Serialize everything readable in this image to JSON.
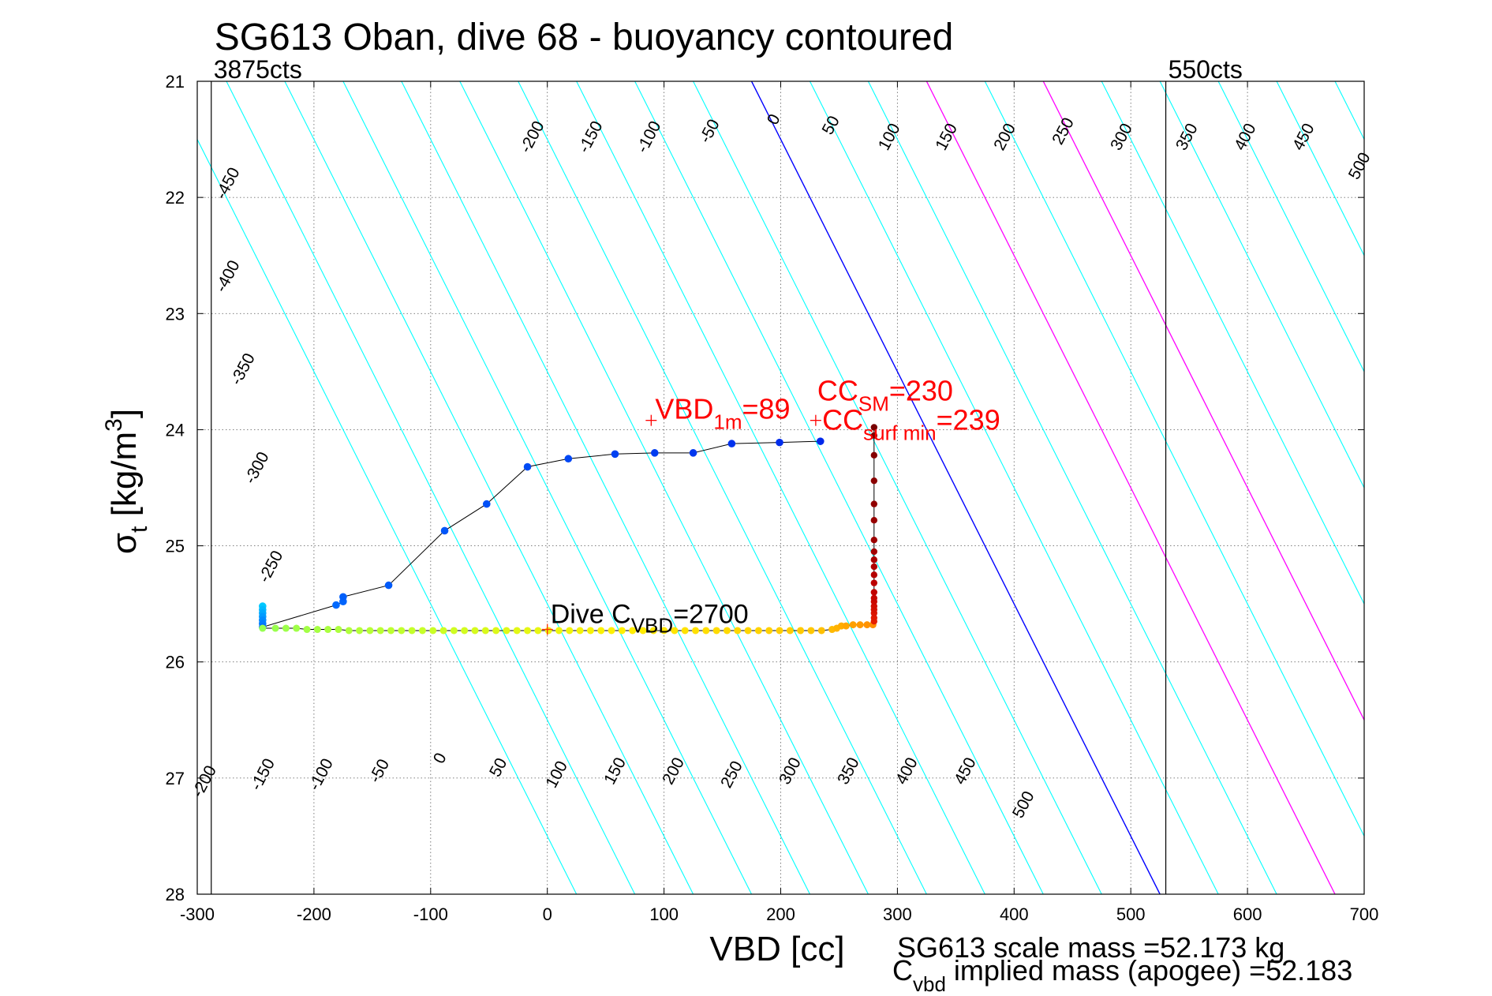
{
  "chart_data": {
    "type": "scatter",
    "title": "SG613 Oban, dive 68 - buoyancy contoured",
    "xlabel": "VBD [cc]",
    "ylabel": {
      "main": "σ",
      "sub": "t",
      "unit": " [kg/m",
      "sup": "3",
      "close": "]"
    },
    "xlim": [
      -300,
      700
    ],
    "ylim": [
      21,
      28
    ],
    "y_reversed": true,
    "grid": true,
    "x_ticks": [
      "-300",
      "-200",
      "-100",
      "0",
      "100",
      "200",
      "300",
      "400",
      "500",
      "600",
      "700"
    ],
    "y_ticks": [
      "21",
      "22",
      "23",
      "24",
      "25",
      "26",
      "27",
      "28"
    ],
    "vbd_limits": [
      {
        "x": -288,
        "label": "3875cts"
      },
      {
        "x": 530,
        "label": "550cts"
      }
    ],
    "contour_x_at_sigma21": [
      -325,
      -275,
      -225,
      -175,
      -125,
      -75,
      -25,
      25,
      75,
      125,
      175,
      225,
      275,
      325,
      375,
      425,
      475,
      525,
      575,
      625,
      675
    ],
    "contour_slope_cc_per_sigma": 50,
    "contour_colors": {
      "default": "#00ffff",
      "zero": "#0000ff",
      "cc": "#ff00ff"
    },
    "contour_labels_top": [
      {
        "text": "-450",
        "x": -270,
        "y": 21.9
      },
      {
        "text": "-400",
        "x": -270,
        "y": 22.7
      },
      {
        "text": "-350",
        "x": -257,
        "y": 23.5
      },
      {
        "text": "-300",
        "x": -245,
        "y": 24.35
      },
      {
        "text": "-250",
        "x": -233,
        "y": 25.2
      },
      {
        "text": "-200",
        "x": -9,
        "y": 21.5
      },
      {
        "text": "-150",
        "x": 41,
        "y": 21.5
      },
      {
        "text": "-100",
        "x": 91,
        "y": 21.5
      },
      {
        "text": "-50",
        "x": 143,
        "y": 21.45
      },
      {
        "text": "0",
        "x": 198,
        "y": 21.35
      },
      {
        "text": "50",
        "x": 247,
        "y": 21.4
      },
      {
        "text": "100",
        "x": 297,
        "y": 21.5
      },
      {
        "text": "150",
        "x": 346,
        "y": 21.5
      },
      {
        "text": "200",
        "x": 396,
        "y": 21.5
      },
      {
        "text": "250",
        "x": 446,
        "y": 21.45
      },
      {
        "text": "300",
        "x": 496,
        "y": 21.5
      },
      {
        "text": "350",
        "x": 552,
        "y": 21.5
      },
      {
        "text": "400",
        "x": 602,
        "y": 21.5
      },
      {
        "text": "450",
        "x": 652,
        "y": 21.5
      },
      {
        "text": "500",
        "x": 700,
        "y": 21.75
      }
    ],
    "contour_labels_bottom": [
      {
        "text": "-200",
        "x": -290,
        "y": 27.05
      },
      {
        "text": "-150",
        "x": -240,
        "y": 26.99
      },
      {
        "text": "-100",
        "x": -190,
        "y": 26.99
      },
      {
        "text": "-50",
        "x": -140,
        "y": 26.96
      },
      {
        "text": "0",
        "x": -88,
        "y": 26.85
      },
      {
        "text": "50",
        "x": -38,
        "y": 26.93
      },
      {
        "text": "100",
        "x": 12,
        "y": 26.99
      },
      {
        "text": "150",
        "x": 62,
        "y": 26.96
      },
      {
        "text": "200",
        "x": 112,
        "y": 26.96
      },
      {
        "text": "250",
        "x": 162,
        "y": 26.99
      },
      {
        "text": "300",
        "x": 212,
        "y": 26.96
      },
      {
        "text": "350",
        "x": 262,
        "y": 26.96
      },
      {
        "text": "400",
        "x": 312,
        "y": 26.96
      },
      {
        "text": "450",
        "x": 362,
        "y": 26.96
      },
      {
        "text": "500",
        "x": 412,
        "y": 27.25
      }
    ],
    "dive_series": {
      "name": "dive",
      "points": [
        [
          -244,
          25.52
        ],
        [
          -244,
          25.55
        ],
        [
          -244,
          25.58
        ],
        [
          -244,
          25.61
        ],
        [
          -244,
          25.64
        ],
        [
          -244,
          25.67
        ],
        [
          -244,
          25.7
        ],
        [
          -181,
          25.51
        ],
        [
          -175,
          25.48
        ],
        [
          -175,
          25.44
        ],
        [
          -136,
          25.34
        ],
        [
          -88,
          24.87
        ],
        [
          -52,
          24.64
        ],
        [
          -17,
          24.32
        ],
        [
          18,
          24.25
        ],
        [
          58,
          24.21
        ],
        [
          92,
          24.2
        ],
        [
          125,
          24.2
        ],
        [
          158,
          24.12
        ],
        [
          199,
          24.11
        ],
        [
          234,
          24.1
        ]
      ]
    },
    "climb_series": {
      "name": "climb",
      "points": [
        [
          -244,
          25.71
        ],
        [
          -233,
          25.71
        ],
        [
          -224,
          25.71
        ],
        [
          -215,
          25.71
        ],
        [
          -206,
          25.72
        ],
        [
          -197,
          25.72
        ],
        [
          -188,
          25.72
        ],
        [
          -179,
          25.72
        ],
        [
          -170,
          25.73
        ],
        [
          -161,
          25.73
        ],
        [
          -152,
          25.73
        ],
        [
          -143,
          25.73
        ],
        [
          -134,
          25.73
        ],
        [
          -125,
          25.73
        ],
        [
          -116,
          25.73
        ],
        [
          -107,
          25.73
        ],
        [
          -98,
          25.73
        ],
        [
          -89,
          25.73
        ],
        [
          -80,
          25.73
        ],
        [
          -71,
          25.73
        ],
        [
          -62,
          25.73
        ],
        [
          -53,
          25.73
        ],
        [
          -44,
          25.73
        ],
        [
          -35,
          25.73
        ],
        [
          -26,
          25.73
        ],
        [
          -17,
          25.73
        ],
        [
          -8,
          25.73
        ],
        [
          1,
          25.73
        ],
        [
          10,
          25.73
        ],
        [
          19,
          25.73
        ],
        [
          28,
          25.73
        ],
        [
          37,
          25.73
        ],
        [
          46,
          25.73
        ],
        [
          55,
          25.73
        ],
        [
          64,
          25.73
        ],
        [
          73,
          25.73
        ],
        [
          82,
          25.73
        ],
        [
          91,
          25.73
        ],
        [
          100,
          25.73
        ],
        [
          109,
          25.73
        ],
        [
          118,
          25.73
        ],
        [
          127,
          25.73
        ],
        [
          136,
          25.73
        ],
        [
          145,
          25.73
        ],
        [
          154,
          25.73
        ],
        [
          163,
          25.73
        ],
        [
          172,
          25.73
        ],
        [
          181,
          25.73
        ],
        [
          190,
          25.73
        ],
        [
          199,
          25.73
        ],
        [
          208,
          25.73
        ],
        [
          217,
          25.73
        ],
        [
          226,
          25.73
        ],
        [
          235,
          25.73
        ],
        [
          244,
          25.72
        ],
        [
          248,
          25.71
        ],
        [
          252,
          25.69
        ],
        [
          256,
          25.69
        ],
        [
          262,
          25.68
        ],
        [
          268,
          25.68
        ],
        [
          274,
          25.68
        ],
        [
          279,
          25.68
        ]
      ]
    },
    "surface_series": {
      "name": "surface",
      "points": [
        [
          280,
          25.65
        ],
        [
          280,
          25.62
        ],
        [
          280,
          25.58
        ],
        [
          280,
          25.55
        ],
        [
          280,
          25.52
        ],
        [
          280,
          25.48
        ],
        [
          280,
          25.45
        ],
        [
          280,
          25.4
        ],
        [
          280,
          25.32
        ],
        [
          280,
          25.25
        ],
        [
          280,
          25.18
        ],
        [
          280,
          25.12
        ],
        [
          280,
          25.05
        ],
        [
          280,
          24.95
        ],
        [
          280,
          24.78
        ],
        [
          280,
          24.64
        ],
        [
          280,
          24.44
        ],
        [
          280,
          24.22
        ],
        [
          280,
          24.05
        ],
        [
          280,
          23.98
        ]
      ]
    },
    "markers": [
      {
        "x": 89,
        "y": 23.92,
        "label": "VBD",
        "sub": "1m",
        "value": "=89",
        "color": "#ff0000"
      },
      {
        "x": 230,
        "y": 23.92,
        "label": "CC",
        "sub": "SM",
        "value": "=230",
        "color": "#ff0000"
      },
      {
        "x": 239,
        "y": 24.07,
        "label": "CC",
        "sub": "surf min",
        "value": "=239",
        "color": "#ff0000"
      },
      {
        "x": 0,
        "y": 25.72,
        "label": "Dive C",
        "sub": "VBD",
        "value": "=2700",
        "color": "#000000"
      }
    ],
    "footer_lines": [
      "SG613 scale mass =52.173 kg",
      {
        "main": "C",
        "sub": "vbd",
        "rest": " implied mass (apogee) =52.183"
      }
    ]
  }
}
